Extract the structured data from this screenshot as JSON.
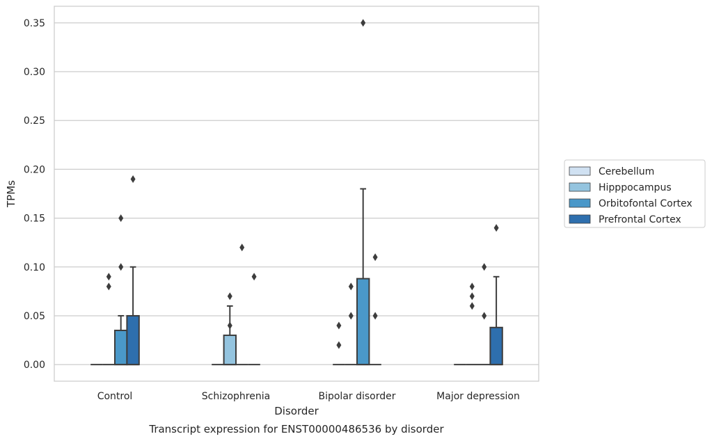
{
  "chart_data": {
    "type": "boxplot",
    "caption": "Transcript expression for ENST00000486536 by disorder",
    "xlabel": "Disorder",
    "ylabel": "TPMs",
    "ylim": [
      -0.017,
      0.367
    ],
    "yticks": [
      0.0,
      0.05,
      0.1,
      0.15,
      0.2,
      0.25,
      0.3,
      0.35
    ],
    "ytick_labels": [
      "0.00",
      "0.05",
      "0.10",
      "0.15",
      "0.20",
      "0.25",
      "0.30",
      "0.35"
    ],
    "grid": "horizontal",
    "legend_position": "right-center",
    "categories": [
      "Control",
      "Schizophrenia",
      "Bipolar disorder",
      "Major depression"
    ],
    "series": [
      {
        "name": "Cerebellum",
        "color": "#d0e1f2",
        "boxes": [
          {
            "q1": 0,
            "median": 0,
            "q3": 0,
            "whisker_low": 0,
            "whisker_high": 0,
            "outliers": []
          },
          {
            "q1": 0,
            "median": 0,
            "q3": 0,
            "whisker_low": 0,
            "whisker_high": 0,
            "outliers": []
          },
          {
            "q1": 0,
            "median": 0,
            "q3": 0,
            "whisker_low": 0,
            "whisker_high": 0,
            "outliers": [
              0.02,
              0.04
            ]
          },
          {
            "q1": 0,
            "median": 0,
            "q3": 0,
            "whisker_low": 0,
            "whisker_high": 0,
            "outliers": []
          }
        ]
      },
      {
        "name": "Hipppocampus",
        "color": "#94c4df",
        "boxes": [
          {
            "q1": 0,
            "median": 0,
            "q3": 0,
            "whisker_low": 0,
            "whisker_high": 0,
            "outliers": [
              0.08,
              0.09
            ]
          },
          {
            "q1": 0,
            "median": 0,
            "q3": 0.03,
            "whisker_low": 0,
            "whisker_high": 0.06,
            "outliers": [
              0.04,
              0.07
            ]
          },
          {
            "q1": 0,
            "median": 0,
            "q3": 0,
            "whisker_low": 0,
            "whisker_high": 0,
            "outliers": [
              0.05,
              0.08
            ]
          },
          {
            "q1": 0,
            "median": 0,
            "q3": 0,
            "whisker_low": 0,
            "whisker_high": 0,
            "outliers": [
              0.06,
              0.07,
              0.08
            ]
          }
        ]
      },
      {
        "name": "Orbitofontal Cortex",
        "color": "#4a98c9",
        "boxes": [
          {
            "q1": 0,
            "median": 0,
            "q3": 0.035,
            "whisker_low": 0,
            "whisker_high": 0.05,
            "outliers": [
              0.1,
              0.15
            ]
          },
          {
            "q1": 0,
            "median": 0,
            "q3": 0,
            "whisker_low": 0,
            "whisker_high": 0,
            "outliers": [
              0.12
            ]
          },
          {
            "q1": 0,
            "median": 0,
            "q3": 0.088,
            "whisker_low": 0,
            "whisker_high": 0.18,
            "outliers": [
              0.35
            ]
          },
          {
            "q1": 0,
            "median": 0,
            "q3": 0,
            "whisker_low": 0,
            "whisker_high": 0,
            "outliers": [
              0.05,
              0.1
            ]
          }
        ]
      },
      {
        "name": "Prefrontal Cortex",
        "color": "#2e6fae",
        "boxes": [
          {
            "q1": 0,
            "median": 0,
            "q3": 0.05,
            "whisker_low": 0,
            "whisker_high": 0.1,
            "outliers": [
              0.19
            ]
          },
          {
            "q1": 0,
            "median": 0,
            "q3": 0,
            "whisker_low": 0,
            "whisker_high": 0,
            "outliers": [
              0.09
            ]
          },
          {
            "q1": 0,
            "median": 0,
            "q3": 0,
            "whisker_low": 0,
            "whisker_high": 0,
            "outliers": [
              0.05,
              0.11
            ]
          },
          {
            "q1": 0,
            "median": 0,
            "q3": 0.038,
            "whisker_low": 0,
            "whisker_high": 0.09,
            "outliers": [
              0.14
            ]
          }
        ]
      }
    ]
  }
}
